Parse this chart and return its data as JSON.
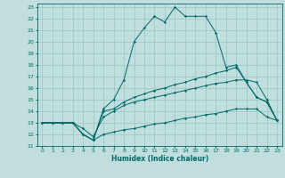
{
  "xlabel": "Humidex (Indice chaleur)",
  "bg_color": "#c0dede",
  "grid_color": "#96c3c3",
  "line_color": "#006868",
  "xlim": [
    0,
    23
  ],
  "ylim": [
    11,
    23
  ],
  "xticks": [
    0,
    1,
    2,
    3,
    4,
    5,
    6,
    7,
    8,
    9,
    10,
    11,
    12,
    13,
    14,
    15,
    16,
    17,
    18,
    19,
    20,
    21,
    22,
    23
  ],
  "yticks": [
    11,
    12,
    13,
    14,
    15,
    16,
    17,
    18,
    19,
    20,
    21,
    22,
    23
  ],
  "series": [
    {
      "x": [
        0,
        1,
        2,
        3,
        4,
        5,
        6,
        7,
        8,
        9,
        10,
        11,
        12,
        13,
        14,
        15,
        16,
        17,
        18,
        19,
        20,
        21,
        22,
        23
      ],
      "y": [
        13,
        13,
        13,
        13,
        12,
        11.5,
        14.2,
        15,
        16.7,
        20.0,
        21.2,
        22.2,
        21.7,
        23.0,
        22.2,
        22.2,
        22.2,
        20.8,
        17.8,
        18.0,
        16.5,
        15.2,
        14.8,
        13.2
      ]
    },
    {
      "x": [
        0,
        1,
        2,
        3,
        4,
        5,
        6,
        7,
        8,
        9,
        10,
        11,
        12,
        13,
        14,
        15,
        16,
        17,
        18,
        19,
        20,
        21,
        22,
        23
      ],
      "y": [
        13,
        13,
        13,
        13,
        12,
        11.5,
        14.0,
        14.2,
        14.8,
        15.2,
        15.5,
        15.8,
        16.0,
        16.3,
        16.5,
        16.8,
        17.0,
        17.3,
        17.5,
        17.8,
        16.5,
        15.2,
        14.8,
        13.2
      ]
    },
    {
      "x": [
        0,
        1,
        2,
        3,
        4,
        5,
        6,
        7,
        8,
        9,
        10,
        11,
        12,
        13,
        14,
        15,
        16,
        17,
        18,
        19,
        20,
        21,
        22,
        23
      ],
      "y": [
        13,
        13,
        13,
        13,
        12.5,
        11.8,
        13.5,
        14.0,
        14.5,
        14.8,
        15.0,
        15.2,
        15.4,
        15.6,
        15.8,
        16.0,
        16.2,
        16.4,
        16.5,
        16.7,
        16.7,
        16.5,
        15.0,
        13.2
      ]
    },
    {
      "x": [
        0,
        1,
        2,
        3,
        4,
        5,
        6,
        7,
        8,
        9,
        10,
        11,
        12,
        13,
        14,
        15,
        16,
        17,
        18,
        19,
        20,
        21,
        22,
        23
      ],
      "y": [
        13,
        13,
        13,
        13,
        12.0,
        11.5,
        12.0,
        12.2,
        12.4,
        12.5,
        12.7,
        12.9,
        13.0,
        13.2,
        13.4,
        13.5,
        13.7,
        13.8,
        14.0,
        14.2,
        14.2,
        14.2,
        13.5,
        13.2
      ]
    }
  ]
}
